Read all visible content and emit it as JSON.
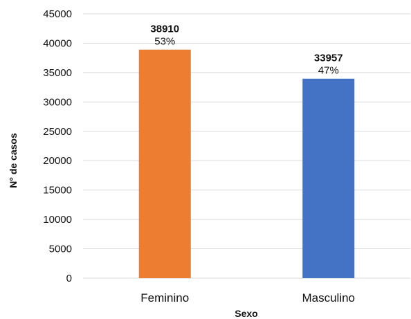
{
  "chart_data": {
    "type": "bar",
    "xlabel": "Sexo",
    "ylabel": "N° de casos",
    "ylim": [
      0,
      45000
    ],
    "yticks": [
      0,
      5000,
      10000,
      15000,
      20000,
      25000,
      30000,
      35000,
      40000,
      45000
    ],
    "grid": true,
    "categories": [
      "Feminino",
      "Masculino"
    ],
    "values": [
      38910,
      33957
    ],
    "value_labels": [
      "38910",
      "33957"
    ],
    "percent_labels": [
      "53%",
      "47%"
    ],
    "colors": [
      "#ed7d31",
      "#4472c4"
    ]
  }
}
